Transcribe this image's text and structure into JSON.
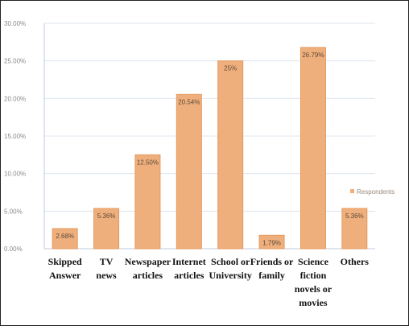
{
  "chart_data": {
    "type": "bar",
    "categories": [
      [
        "Skipped",
        "Answer"
      ],
      [
        "TV",
        "news"
      ],
      [
        "Newspaper",
        "articles"
      ],
      [
        "Internet",
        "articles"
      ],
      [
        "School or",
        "University"
      ],
      [
        "Friends or",
        "family"
      ],
      [
        "Science",
        "fiction",
        "novels or",
        "movies"
      ],
      [
        "Others"
      ]
    ],
    "series": [
      {
        "name": "Respondents",
        "values": [
          2.68,
          5.36,
          12.5,
          20.54,
          25,
          1.79,
          26.79,
          5.36
        ],
        "data_labels": [
          "2.68%",
          "5.36%",
          "12.50%",
          "20.54%",
          "25%",
          "1.79%",
          "26.79%",
          "5.36%"
        ],
        "color": "#efaf7c",
        "border_color": "#e59a5e"
      }
    ],
    "y_ticks": [
      0,
      5,
      10,
      15,
      20,
      25,
      30
    ],
    "y_tick_labels": [
      "0.00%",
      "5.00%",
      "10.00%",
      "15.00%",
      "20.00%",
      "25.00%",
      "30.00%"
    ],
    "ylim": [
      0,
      30
    ],
    "grid": true,
    "legend_position": "right",
    "grid_color": "#dde4ef",
    "axis_color": "#bfcbdd"
  }
}
